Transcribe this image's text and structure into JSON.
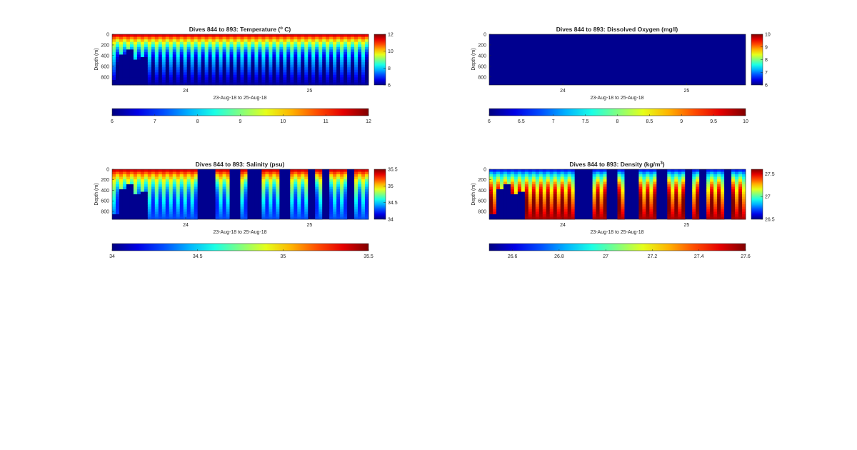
{
  "figure": {
    "background": "#ffffff",
    "colormap": "jet"
  },
  "chart_data": [
    {
      "type": "heatmap",
      "panel": "temperature",
      "title_prefix": "Dives 844 to 893: Temperature (",
      "title_sup": "o",
      "title_suffix": " C)",
      "xlabel": "23-Aug-18 to 25-Aug-18",
      "ylabel": "Depth (m)",
      "x_ticks": [
        "24",
        "25"
      ],
      "y_ticks": [
        "0",
        "200",
        "400",
        "600",
        "800"
      ],
      "ylim": [
        0,
        950
      ],
      "clim": [
        6,
        12
      ],
      "side_colorbar_ticks": [
        "12",
        "10",
        "8",
        "6"
      ],
      "bottom_colorbar_ticks": [
        "6",
        "7",
        "8",
        "9",
        "10",
        "11",
        "12"
      ],
      "field": {
        "n_profiles": 72,
        "surface_value": 11.8,
        "bottom_value": 6.2,
        "alternating_contrast": 1.6,
        "fill_value_color": "#00008f",
        "masked_columns": []
      }
    },
    {
      "type": "heatmap",
      "panel": "oxygen",
      "title_prefix": "Dives 844 to 893: Dissolved Oxygen (mg/l)",
      "title_sup": "",
      "title_suffix": "",
      "xlabel": "23-Aug-18 to 25-Aug-18",
      "ylabel": "Depth (m)",
      "x_ticks": [
        "24",
        "25"
      ],
      "y_ticks": [
        "0",
        "200",
        "400",
        "600",
        "800"
      ],
      "ylim": [
        0,
        950
      ],
      "clim": [
        6,
        10
      ],
      "side_colorbar_ticks": [
        "10",
        "9",
        "8",
        "7",
        "6"
      ],
      "bottom_colorbar_ticks": [
        "6",
        "6.5",
        "7",
        "7.5",
        "8",
        "8.5",
        "9",
        "9.5",
        "10"
      ],
      "field": {
        "uniform_color": "#00008f"
      }
    },
    {
      "type": "heatmap",
      "panel": "salinity",
      "title_prefix": "Dives 844 to 893: Salinity (psu)",
      "title_sup": "",
      "title_suffix": "",
      "xlabel": "23-Aug-18 to 25-Aug-18",
      "ylabel": "Depth (m)",
      "x_ticks": [
        "24",
        "25"
      ],
      "y_ticks": [
        "0",
        "200",
        "400",
        "600",
        "800"
      ],
      "ylim": [
        0,
        950
      ],
      "clim": [
        34,
        35.5
      ],
      "side_colorbar_ticks": [
        "35.5",
        "35",
        "34.5",
        "34"
      ],
      "bottom_colorbar_ticks": [
        "34",
        "34.5",
        "35",
        "35.5"
      ],
      "field": {
        "n_profiles": 72,
        "surface_value": 35.45,
        "bottom_value": 34.3,
        "alternating_contrast": 0.35,
        "fill_value_color": "#00008f",
        "masked_columns": [
          [
            24,
            28
          ],
          [
            33,
            35
          ],
          [
            38,
            41
          ],
          [
            47,
            49
          ],
          [
            55,
            56
          ],
          [
            59,
            60
          ],
          [
            66,
            67
          ]
        ]
      }
    },
    {
      "type": "heatmap",
      "panel": "density",
      "title_prefix": "Dives 844 to 893: Density (kg/m",
      "title_sup": "3",
      "title_suffix": ")",
      "xlabel": "23-Aug-18 to 25-Aug-18",
      "ylabel": "Depth (m)",
      "x_ticks": [
        "24",
        "25"
      ],
      "y_ticks": [
        "0",
        "200",
        "400",
        "600",
        "800"
      ],
      "ylim": [
        0,
        950
      ],
      "clim": [
        26.5,
        27.6
      ],
      "side_colorbar_ticks": [
        "27.5",
        "27",
        "26.5"
      ],
      "bottom_colorbar_ticks": [
        "26.6",
        "26.8",
        "27",
        "27.2",
        "27.4",
        "27.6"
      ],
      "field": {
        "n_profiles": 72,
        "surface_value": 26.6,
        "bottom_value": 27.55,
        "alternating_contrast": 0.3,
        "fill_value_color": "#00008f",
        "masked_columns": [
          [
            24,
            28
          ],
          [
            33,
            35
          ],
          [
            38,
            41
          ],
          [
            47,
            49
          ],
          [
            55,
            56
          ],
          [
            59,
            60
          ],
          [
            66,
            67
          ]
        ]
      }
    }
  ]
}
